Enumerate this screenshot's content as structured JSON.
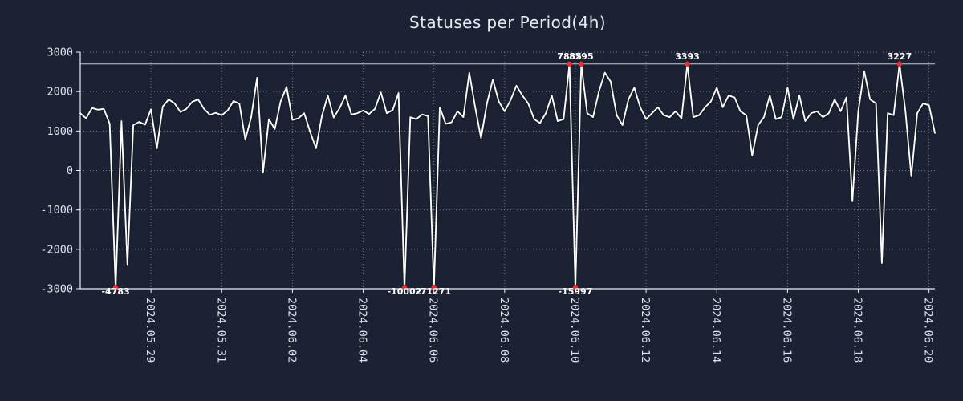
{
  "page": {
    "background": "#1b2233"
  },
  "chart_data": {
    "type": "line",
    "title": "Statuses per Period(4h)",
    "period": "4h",
    "x_start": "2024-05-27 00:00",
    "x_step_hours": 4,
    "ylim": [
      -3000,
      3000
    ],
    "ytick_step": 1000,
    "y_tick_labels": [
      "3000",
      "2000",
      "1000",
      "0",
      "-1000",
      "-2000",
      "-3000"
    ],
    "cap_line_y": 2700,
    "grid": true,
    "legend": false,
    "x_tick_indices": [
      12,
      24,
      36,
      48,
      60,
      72,
      84,
      96,
      108,
      120,
      132,
      144
    ],
    "x_tick_labels": [
      "2024.05.29",
      "2024.05.31",
      "2024.06.02",
      "2024.06.04",
      "2024.06.06",
      "2024.06.08",
      "2024.06.10",
      "2024.06.12",
      "2024.06.14",
      "2024.06.16",
      "2024.06.18",
      "2024.06.20"
    ],
    "values": [
      1450,
      1320,
      1580,
      1540,
      1560,
      1180,
      -4783,
      1250,
      -2400,
      1150,
      1230,
      1160,
      1550,
      560,
      1620,
      1800,
      1700,
      1480,
      1560,
      1740,
      1800,
      1560,
      1410,
      1460,
      1400,
      1520,
      1760,
      1690,
      780,
      1350,
      2350,
      -60,
      1300,
      1050,
      1750,
      2120,
      1280,
      1320,
      1450,
      980,
      560,
      1380,
      1900,
      1340,
      1580,
      1900,
      1420,
      1450,
      1520,
      1430,
      1560,
      1980,
      1450,
      1530,
      1960,
      -10002,
      1350,
      1300,
      1420,
      1380,
      -71271,
      1600,
      1180,
      1220,
      1500,
      1350,
      2480,
      1600,
      820,
      1700,
      2300,
      1750,
      1500,
      1780,
      2150,
      1900,
      1700,
      1300,
      1200,
      1450,
      1900,
      1250,
      1300,
      7885,
      -15997,
      8295,
      1450,
      1350,
      2000,
      2480,
      2250,
      1400,
      1150,
      1800,
      2100,
      1600,
      1300,
      1450,
      1600,
      1400,
      1350,
      1500,
      1320,
      3393,
      1350,
      1400,
      1600,
      1750,
      2100,
      1600,
      1900,
      1850,
      1500,
      1400,
      380,
      1150,
      1350,
      1900,
      1300,
      1350,
      2100,
      1300,
      1900,
      1250,
      1450,
      1500,
      1350,
      1450,
      1800,
      1500,
      1850,
      -780,
      1500,
      2520,
      1800,
      1700,
      -2350,
      1450,
      1400,
      3227,
      1500,
      -150,
      1450,
      1700,
      1650,
      950
    ],
    "annotations": [
      {
        "index": 6,
        "value": -4783,
        "position": "bottom"
      },
      {
        "index": 55,
        "value": -10002,
        "position": "bottom"
      },
      {
        "index": 60,
        "value": -71271,
        "position": "bottom"
      },
      {
        "index": 83,
        "value": 7885,
        "position": "top"
      },
      {
        "index": 84,
        "value": -15997,
        "position": "bottom"
      },
      {
        "index": 85,
        "value": 8295,
        "position": "top"
      },
      {
        "index": 103,
        "value": 3393,
        "position": "top"
      },
      {
        "index": 139,
        "value": 3227,
        "position": "top"
      }
    ],
    "colors": {
      "background": "#1b2233",
      "line": "#ffffff",
      "grid": "rgba(235,240,250,0.42)",
      "axis": "#e9edf5",
      "text": "#dfe4ee",
      "marker": "#f42a2a",
      "cap_line": "#d7dce6",
      "annotation_text": "#ffffff"
    }
  }
}
